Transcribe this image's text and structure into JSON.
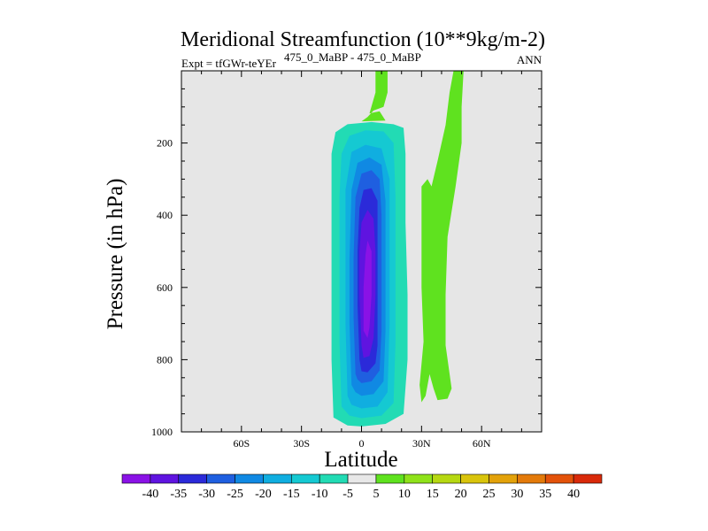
{
  "chart_data": {
    "type": "heatmap",
    "title": "Meridional Streamfunction (10**9kg/m-2)",
    "subtitle_left": "Expt = tfGWr-teYEr",
    "subtitle_center": "475_0_MaBP - 475_0_MaBP",
    "subtitle_right": "ANN",
    "xlabel": "Latitude",
    "ylabel": "Pressure (in hPa)",
    "xlim": [
      -90,
      90
    ],
    "ylim": [
      1000,
      0
    ],
    "x_ticks": [
      {
        "value": -60,
        "label": "60S"
      },
      {
        "value": -30,
        "label": "30S"
      },
      {
        "value": 0,
        "label": "0"
      },
      {
        "value": 30,
        "label": "30N"
      },
      {
        "value": 60,
        "label": "60N"
      }
    ],
    "y_ticks": [
      {
        "value": 200,
        "label": "200"
      },
      {
        "value": 400,
        "label": "400"
      },
      {
        "value": 600,
        "label": "600"
      },
      {
        "value": 800,
        "label": "800"
      },
      {
        "value": 1000,
        "label": "1000"
      }
    ],
    "colorbar": {
      "labels": [
        "-40",
        "-35",
        "-30",
        "-25",
        "-20",
        "-15",
        "-10",
        "-5",
        "5",
        "10",
        "15",
        "20",
        "25",
        "30",
        "35",
        "40"
      ],
      "colors": [
        "#8a12e6",
        "#5f14e0",
        "#2b2ad9",
        "#1f5fe0",
        "#1089e3",
        "#10aee0",
        "#15c9d2",
        "#22dbb4",
        "#e8e8e8",
        "#5fe21f",
        "#8fe21a",
        "#b6d812",
        "#d9c40c",
        "#e3a20a",
        "#e37a0a",
        "#e3520a",
        "#d92a0a"
      ]
    },
    "contours": [
      {
        "level": -10,
        "color": "#22dbb4",
        "points": [
          [
            -14,
            960
          ],
          [
            -15,
            800
          ],
          [
            -15,
            600
          ],
          [
            -15,
            400
          ],
          [
            -15,
            230
          ],
          [
            -13,
            170
          ],
          [
            -7,
            148
          ],
          [
            5,
            142
          ],
          [
            16,
            148
          ],
          [
            21,
            158
          ],
          [
            22,
            230
          ],
          [
            22,
            420
          ],
          [
            23,
            620
          ],
          [
            23,
            800
          ],
          [
            21,
            950
          ],
          [
            12,
            978
          ],
          [
            0,
            985
          ],
          [
            -7,
            982
          ]
        ]
      },
      {
        "level": -15,
        "color": "#15c9d2",
        "points": [
          [
            -10,
            930
          ],
          [
            -11,
            750
          ],
          [
            -11,
            550
          ],
          [
            -11,
            350
          ],
          [
            -10,
            230
          ],
          [
            -6,
            180
          ],
          [
            2,
            165
          ],
          [
            11,
            168
          ],
          [
            16,
            200
          ],
          [
            17,
            350
          ],
          [
            17,
            550
          ],
          [
            17,
            750
          ],
          [
            16,
            920
          ],
          [
            10,
            955
          ],
          [
            0,
            962
          ],
          [
            -6,
            955
          ]
        ]
      },
      {
        "level": -20,
        "color": "#10aee0",
        "points": [
          [
            -7,
            900
          ],
          [
            -8,
            700
          ],
          [
            -8,
            500
          ],
          [
            -8,
            330
          ],
          [
            -5,
            225
          ],
          [
            2,
            205
          ],
          [
            10,
            215
          ],
          [
            14,
            300
          ],
          [
            14,
            500
          ],
          [
            14,
            700
          ],
          [
            13,
            890
          ],
          [
            8,
            930
          ],
          [
            0,
            935
          ],
          [
            -5,
            925
          ]
        ]
      },
      {
        "level": -25,
        "color": "#1089e3",
        "points": [
          [
            -5,
            870
          ],
          [
            -6,
            700
          ],
          [
            -6,
            520
          ],
          [
            -5,
            330
          ],
          [
            -2,
            255
          ],
          [
            4,
            240
          ],
          [
            10,
            260
          ],
          [
            12,
            360
          ],
          [
            12,
            540
          ],
          [
            12,
            720
          ],
          [
            11,
            860
          ],
          [
            6,
            895
          ],
          [
            0,
            900
          ],
          [
            -3,
            890
          ]
        ]
      },
      {
        "level": -30,
        "color": "#1f5fe0",
        "points": [
          [
            -3,
            840
          ],
          [
            -4,
            680
          ],
          [
            -4,
            520
          ],
          [
            -3,
            350
          ],
          [
            0,
            285
          ],
          [
            5,
            275
          ],
          [
            9,
            300
          ],
          [
            10,
            400
          ],
          [
            10,
            560
          ],
          [
            10,
            720
          ],
          [
            9,
            830
          ],
          [
            5,
            860
          ],
          [
            0,
            865
          ],
          [
            -2,
            855
          ]
        ]
      },
      {
        "level": -35,
        "color": "#2b2ad9",
        "points": [
          [
            -1,
            800
          ],
          [
            -2,
            650
          ],
          [
            -2,
            500
          ],
          [
            -1,
            380
          ],
          [
            1,
            330
          ],
          [
            5,
            325
          ],
          [
            8,
            360
          ],
          [
            8,
            480
          ],
          [
            8,
            620
          ],
          [
            8,
            760
          ],
          [
            7,
            810
          ],
          [
            3,
            835
          ],
          [
            0,
            832
          ]
        ]
      },
      {
        "level": -40,
        "color": "#5f14e0",
        "points": [
          [
            0,
            760
          ],
          [
            -1,
            620
          ],
          [
            -1,
            500
          ],
          [
            0,
            420
          ],
          [
            3,
            385
          ],
          [
            6,
            410
          ],
          [
            7,
            500
          ],
          [
            7,
            620
          ],
          [
            6,
            740
          ],
          [
            4,
            790
          ],
          [
            1,
            795
          ]
        ]
      },
      {
        "level": -40,
        "color": "#8a12e6",
        "points": [
          [
            1,
            720
          ],
          [
            1,
            600
          ],
          [
            2,
            510
          ],
          [
            3,
            470
          ],
          [
            5,
            500
          ],
          [
            5,
            620
          ],
          [
            4,
            710
          ],
          [
            3,
            740
          ]
        ]
      },
      {
        "level": 5,
        "color": "#5fe21f",
        "points": [
          [
            7,
            0
          ],
          [
            13,
            0
          ],
          [
            13,
            60
          ],
          [
            11,
            100
          ],
          [
            6,
            110
          ],
          [
            3,
            128
          ],
          [
            0,
            140
          ],
          [
            12,
            138
          ],
          [
            9,
            112
          ],
          [
            4,
            118
          ],
          [
            7,
            60
          ]
        ]
      },
      {
        "level": 5,
        "color": "#5fe21f",
        "points": [
          [
            46,
            0
          ],
          [
            51,
            0
          ],
          [
            50,
            100
          ],
          [
            50,
            200
          ],
          [
            47,
            320
          ],
          [
            43,
            460
          ],
          [
            42,
            620
          ],
          [
            42,
            760
          ],
          [
            45,
            880
          ],
          [
            43,
            908
          ],
          [
            38,
            912
          ],
          [
            36,
            880
          ],
          [
            34,
            840
          ],
          [
            32,
            900
          ],
          [
            30,
            918
          ],
          [
            29,
            870
          ],
          [
            31,
            750
          ],
          [
            30,
            600
          ],
          [
            30,
            450
          ],
          [
            30,
            320
          ],
          [
            33,
            300
          ],
          [
            35,
            320
          ],
          [
            38,
            250
          ],
          [
            42,
            150
          ],
          [
            44,
            60
          ]
        ]
      }
    ]
  }
}
